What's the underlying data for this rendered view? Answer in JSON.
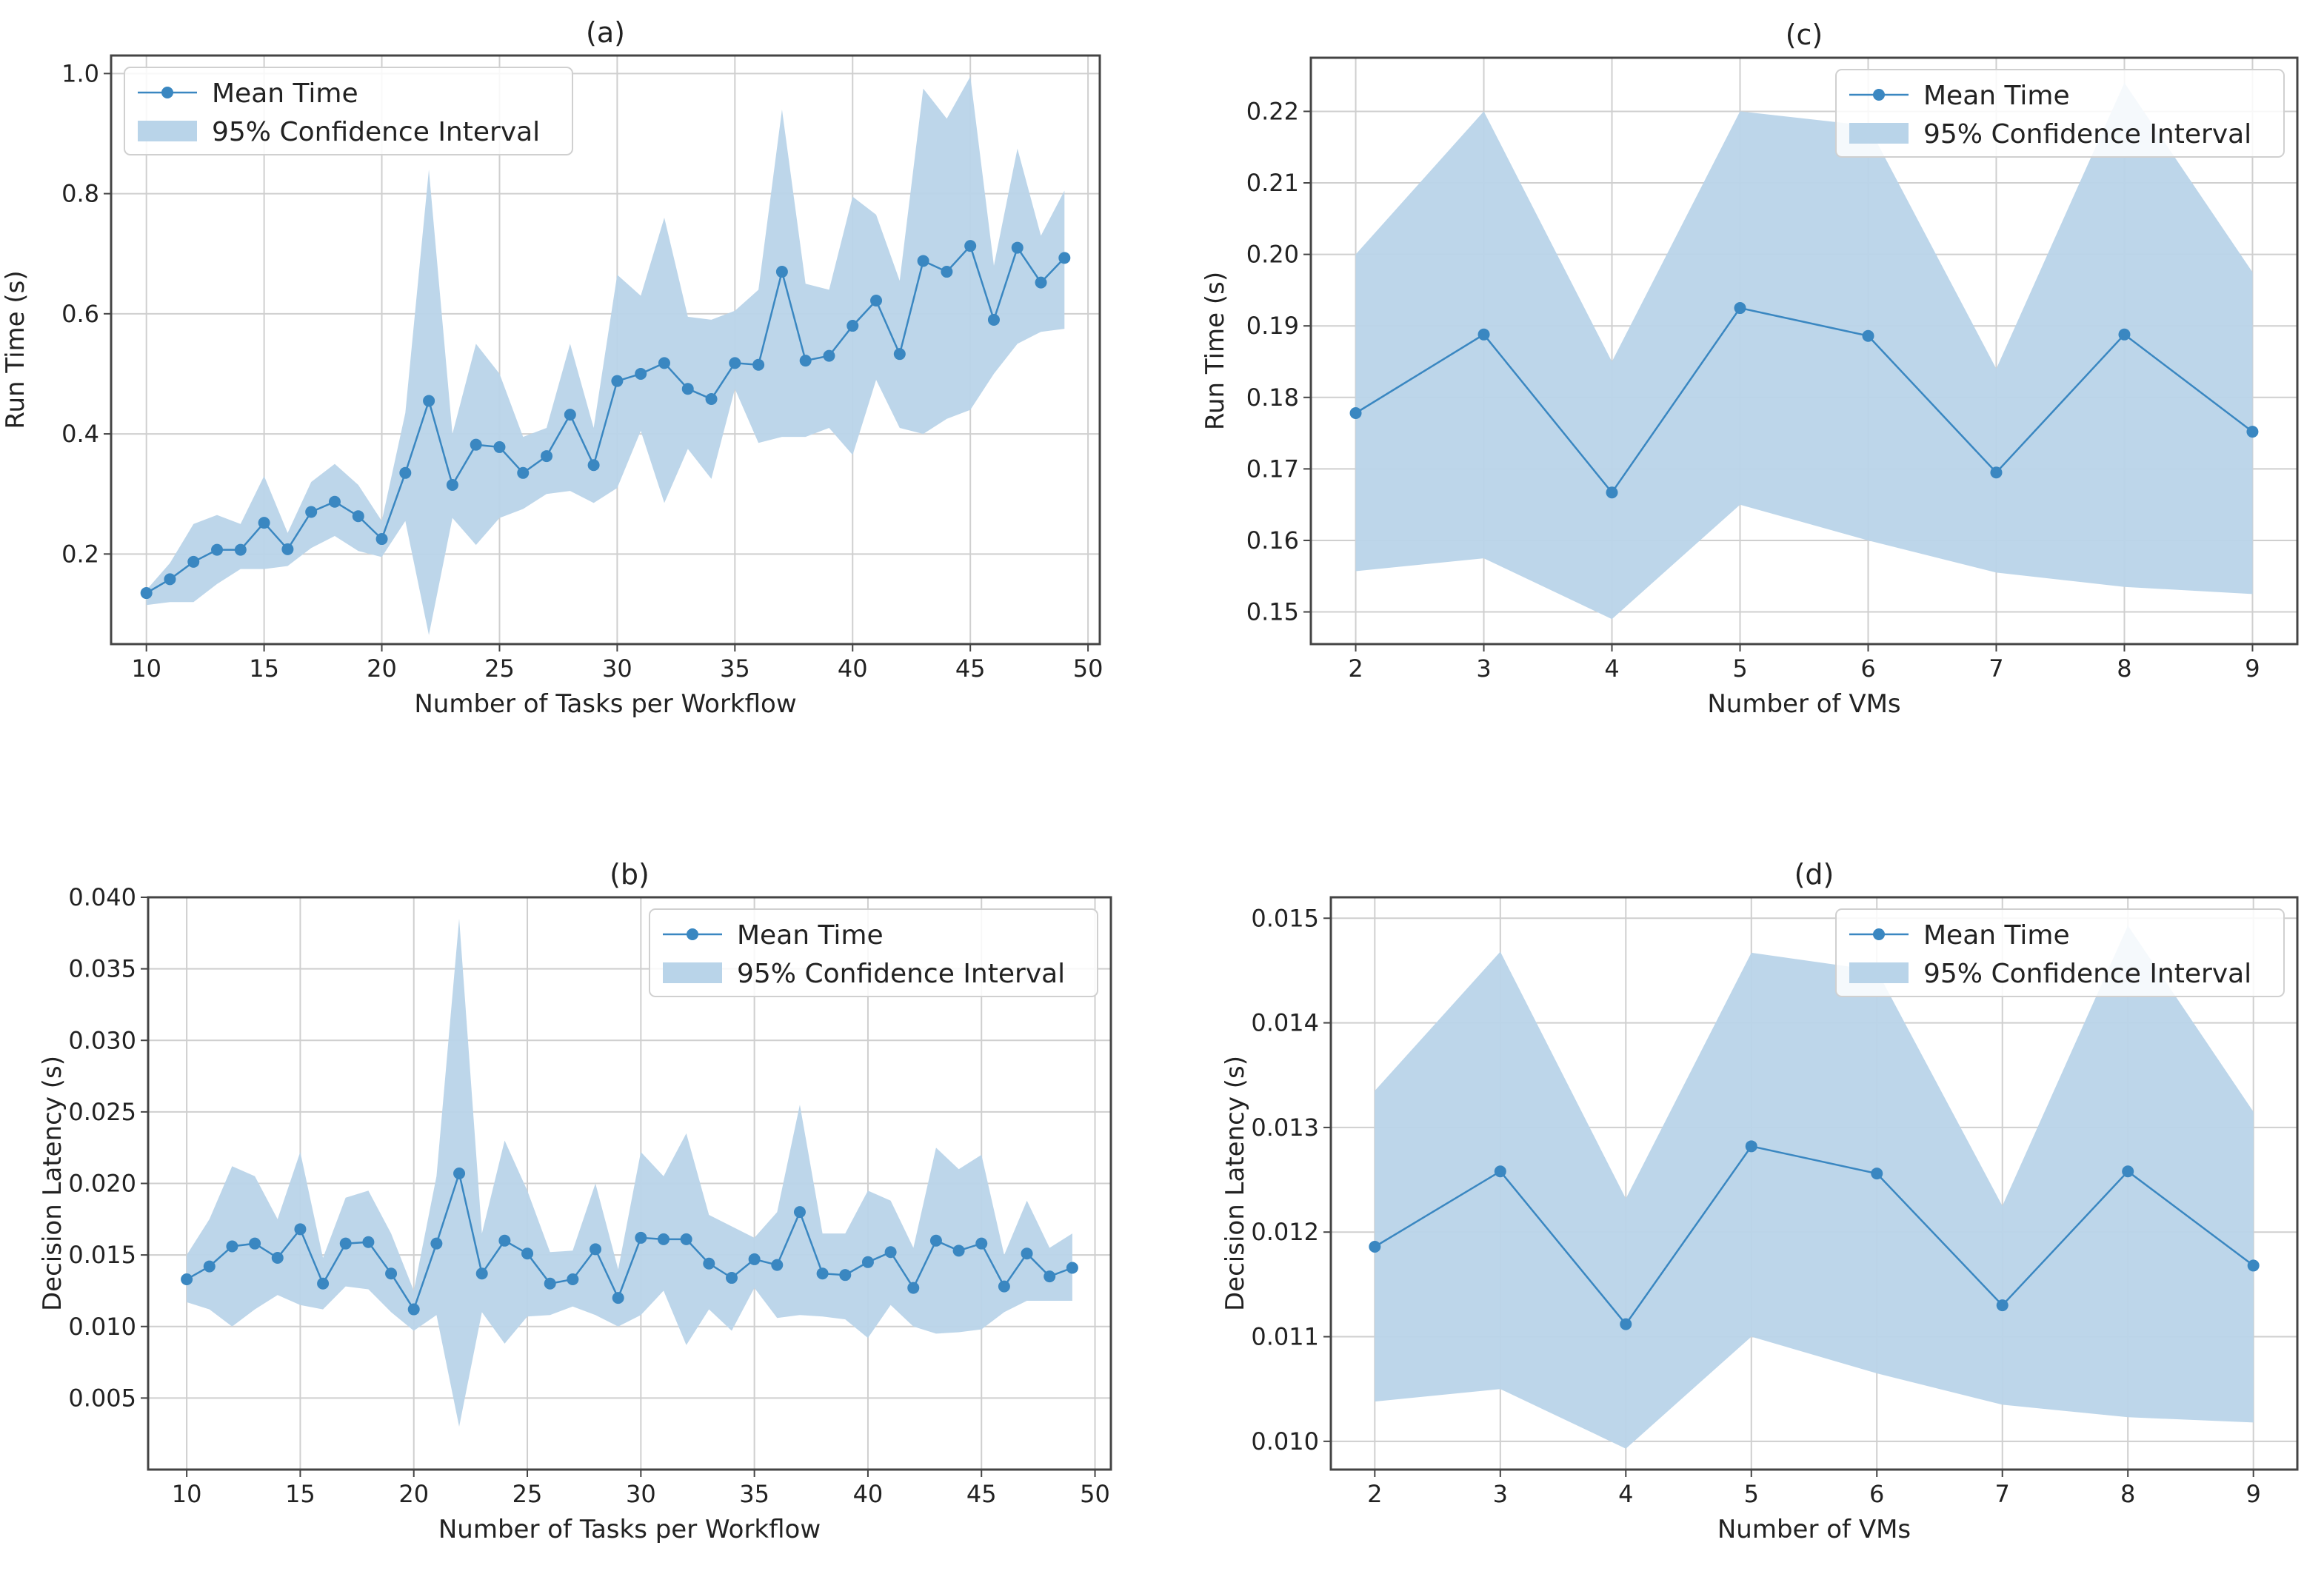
{
  "figure": {
    "colors": {
      "line": "#3a87c1",
      "band": "#b9d4e9",
      "grid": "#cfcfcf",
      "frame": "#444444"
    }
  },
  "chart_data": [
    {
      "id": "a",
      "type": "line",
      "title": "(a)",
      "xlabel": "Number of Tasks per Workflow",
      "ylabel": "Run Time (s)",
      "xlim": [
        8.5,
        50.5
      ],
      "ylim": [
        0.05,
        1.03
      ],
      "xticks": [
        10,
        15,
        20,
        25,
        30,
        35,
        40,
        45,
        50
      ],
      "yticks": [
        0.2,
        0.4,
        0.6,
        0.8,
        1.0
      ],
      "ytick_labels": [
        "0.2",
        "0.4",
        "0.6",
        "0.8",
        "1.0"
      ],
      "legend": {
        "position": "top-left",
        "mean_label": "Mean Time",
        "ci_label": "95% Confidence Interval"
      },
      "x": [
        10,
        11,
        12,
        13,
        14,
        15,
        16,
        17,
        18,
        19,
        20,
        21,
        22,
        23,
        24,
        25,
        26,
        27,
        28,
        29,
        30,
        31,
        32,
        33,
        34,
        35,
        36,
        37,
        38,
        39,
        40,
        41,
        42,
        43,
        44,
        45,
        46,
        47,
        48,
        49
      ],
      "mean": [
        0.135,
        0.158,
        0.187,
        0.207,
        0.207,
        0.252,
        0.208,
        0.27,
        0.287,
        0.263,
        0.225,
        0.335,
        0.455,
        0.315,
        0.382,
        0.378,
        0.335,
        0.363,
        0.432,
        0.348,
        0.488,
        0.5,
        0.518,
        0.475,
        0.458,
        0.518,
        0.515,
        0.67,
        0.522,
        0.53,
        0.58,
        0.622,
        0.533,
        0.688,
        0.67,
        0.713,
        0.59,
        0.71,
        0.652,
        0.693
      ],
      "ci_low": [
        0.115,
        0.12,
        0.12,
        0.15,
        0.175,
        0.175,
        0.18,
        0.21,
        0.23,
        0.205,
        0.195,
        0.255,
        0.065,
        0.26,
        0.215,
        0.26,
        0.275,
        0.3,
        0.305,
        0.285,
        0.31,
        0.405,
        0.285,
        0.375,
        0.325,
        0.475,
        0.385,
        0.395,
        0.395,
        0.41,
        0.365,
        0.49,
        0.41,
        0.4,
        0.425,
        0.44,
        0.5,
        0.55,
        0.57,
        0.575
      ],
      "ci_high": [
        0.14,
        0.185,
        0.25,
        0.265,
        0.25,
        0.33,
        0.235,
        0.32,
        0.35,
        0.315,
        0.255,
        0.435,
        0.84,
        0.4,
        0.55,
        0.5,
        0.395,
        0.41,
        0.55,
        0.41,
        0.665,
        0.63,
        0.76,
        0.595,
        0.59,
        0.605,
        0.64,
        0.94,
        0.65,
        0.64,
        0.795,
        0.765,
        0.655,
        0.975,
        0.925,
        0.995,
        0.68,
        0.875,
        0.73,
        0.805
      ]
    },
    {
      "id": "b",
      "type": "line",
      "title": "(b)",
      "xlabel": "Number of Tasks per Workflow",
      "ylabel": "Decision Latency (s)",
      "xlim": [
        8.3,
        50.7
      ],
      "ylim": [
        0.0,
        0.04
      ],
      "xticks": [
        10,
        15,
        20,
        25,
        30,
        35,
        40,
        45,
        50
      ],
      "yticks": [
        0.005,
        0.01,
        0.015,
        0.02,
        0.025,
        0.03,
        0.035,
        0.04
      ],
      "ytick_labels": [
        "0.005",
        "0.010",
        "0.015",
        "0.020",
        "0.025",
        "0.030",
        "0.035",
        "0.040"
      ],
      "legend": {
        "position": "top-right",
        "mean_label": "Mean Time",
        "ci_label": "95% Confidence Interval"
      },
      "x": [
        10,
        11,
        12,
        13,
        14,
        15,
        16,
        17,
        18,
        19,
        20,
        21,
        22,
        23,
        24,
        25,
        26,
        27,
        28,
        29,
        30,
        31,
        32,
        33,
        34,
        35,
        36,
        37,
        38,
        39,
        40,
        41,
        42,
        43,
        44,
        45,
        46,
        47,
        48,
        49
      ],
      "mean": [
        0.0133,
        0.0142,
        0.0156,
        0.0158,
        0.0148,
        0.0168,
        0.013,
        0.0158,
        0.0159,
        0.0137,
        0.0112,
        0.0158,
        0.0207,
        0.0137,
        0.016,
        0.0151,
        0.013,
        0.0133,
        0.0154,
        0.012,
        0.0162,
        0.0161,
        0.0161,
        0.0144,
        0.0134,
        0.0147,
        0.0143,
        0.018,
        0.0137,
        0.0136,
        0.0145,
        0.0152,
        0.0127,
        0.016,
        0.0153,
        0.0158,
        0.0128,
        0.0151,
        0.0135,
        0.0141
      ],
      "ci_low": [
        0.0117,
        0.0112,
        0.01,
        0.0112,
        0.0122,
        0.0115,
        0.0112,
        0.0128,
        0.0126,
        0.011,
        0.0097,
        0.0108,
        0.003,
        0.011,
        0.0088,
        0.0107,
        0.0108,
        0.0114,
        0.0108,
        0.01,
        0.0108,
        0.0125,
        0.0087,
        0.0112,
        0.0097,
        0.0127,
        0.0106,
        0.0108,
        0.0107,
        0.0105,
        0.0092,
        0.0115,
        0.01,
        0.0095,
        0.0096,
        0.0098,
        0.011,
        0.0118,
        0.0118,
        0.0118
      ],
      "ci_high": [
        0.015,
        0.0175,
        0.0212,
        0.0205,
        0.0175,
        0.0222,
        0.0148,
        0.019,
        0.0195,
        0.0165,
        0.0125,
        0.0205,
        0.0385,
        0.0165,
        0.023,
        0.0195,
        0.0152,
        0.0153,
        0.02,
        0.014,
        0.0222,
        0.0205,
        0.0235,
        0.0178,
        0.017,
        0.0162,
        0.018,
        0.0255,
        0.0165,
        0.0165,
        0.0195,
        0.0188,
        0.0155,
        0.0225,
        0.021,
        0.022,
        0.015,
        0.0188,
        0.0155,
        0.0165
      ]
    },
    {
      "id": "c",
      "type": "line",
      "title": "(c)",
      "xlabel": "Number of VMs",
      "ylabel": "Run Time (s)",
      "xlim": [
        1.65,
        9.35
      ],
      "ylim": [
        0.1455,
        0.2275
      ],
      "xticks": [
        2,
        3,
        4,
        5,
        6,
        7,
        8,
        9
      ],
      "yticks": [
        0.15,
        0.16,
        0.17,
        0.18,
        0.19,
        0.2,
        0.21,
        0.22
      ],
      "ytick_labels": [
        "0.15",
        "0.16",
        "0.17",
        "0.18",
        "0.19",
        "0.20",
        "0.21",
        "0.22"
      ],
      "legend": {
        "position": "top-right",
        "mean_label": "Mean Time",
        "ci_label": "95% Confidence Interval"
      },
      "x": [
        2,
        3,
        4,
        5,
        6,
        7,
        8,
        9
      ],
      "mean": [
        0.1778,
        0.1888,
        0.1667,
        0.1925,
        0.1886,
        0.1695,
        0.1888,
        0.1752
      ],
      "ci_low": [
        0.1557,
        0.1575,
        0.149,
        0.165,
        0.16,
        0.1555,
        0.1535,
        0.1525
      ],
      "ci_high": [
        0.2,
        0.22,
        0.185,
        0.22,
        0.218,
        0.184,
        0.224,
        0.1975
      ]
    },
    {
      "id": "d",
      "type": "line",
      "title": "(d)",
      "xlabel": "Number of VMs",
      "ylabel": "Decision Latency (s)",
      "xlim": [
        1.65,
        9.35
      ],
      "ylim": [
        0.00973,
        0.0152
      ],
      "xticks": [
        2,
        3,
        4,
        5,
        6,
        7,
        8,
        9
      ],
      "yticks": [
        0.01,
        0.011,
        0.012,
        0.013,
        0.014,
        0.015
      ],
      "ytick_labels": [
        "0.010",
        "0.011",
        "0.012",
        "0.013",
        "0.014",
        "0.015"
      ],
      "legend": {
        "position": "top-right",
        "mean_label": "Mean Time",
        "ci_label": "95% Confidence Interval"
      },
      "x": [
        2,
        3,
        4,
        5,
        6,
        7,
        8,
        9
      ],
      "mean": [
        0.01186,
        0.01258,
        0.01112,
        0.01282,
        0.01256,
        0.0113,
        0.01258,
        0.01168
      ],
      "ci_low": [
        0.01038,
        0.0105,
        0.00993,
        0.011,
        0.01065,
        0.01035,
        0.01023,
        0.01018
      ],
      "ci_high": [
        0.01335,
        0.01468,
        0.01232,
        0.01467,
        0.0145,
        0.01225,
        0.01493,
        0.01315
      ]
    }
  ]
}
